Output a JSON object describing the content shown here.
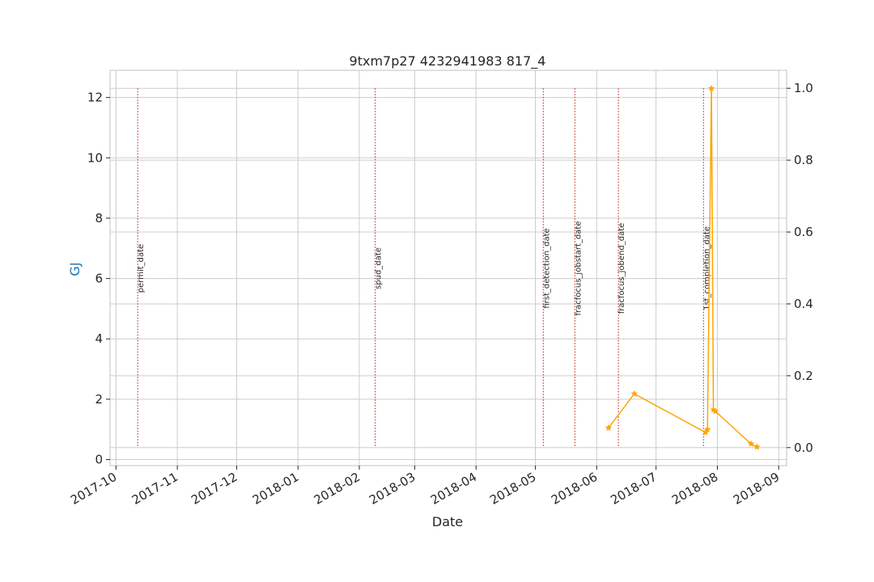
{
  "chart_data": {
    "type": "line",
    "title": "9txm7p27 4232941983 817_4",
    "xlabel": "Date",
    "ylabel": "GJ",
    "ylabel_color": "#1f77b4",
    "xlim": [
      "2017-09-28",
      "2018-09-05"
    ],
    "ylim": [
      -0.2,
      12.9
    ],
    "y2lim": [
      -0.05,
      1.05
    ],
    "grid": true,
    "x_ticks": [
      "2017-10",
      "2017-11",
      "2017-12",
      "2018-01",
      "2018-02",
      "2018-03",
      "2018-04",
      "2018-05",
      "2018-06",
      "2018-07",
      "2018-08",
      "2018-09"
    ],
    "x_tick_dates": [
      "2017-10-01",
      "2017-11-01",
      "2017-12-01",
      "2018-01-01",
      "2018-02-01",
      "2018-03-01",
      "2018-04-01",
      "2018-05-01",
      "2018-06-01",
      "2018-07-01",
      "2018-08-01",
      "2018-09-01"
    ],
    "y_ticks": [
      0,
      2,
      4,
      6,
      8,
      10,
      12
    ],
    "y2_ticks": [
      0.0,
      0.2,
      0.4,
      0.6,
      0.8,
      1.0
    ],
    "y_tick_labels": [
      "0",
      "2",
      "4",
      "6",
      "8",
      "10",
      "12"
    ],
    "y2_tick_labels": [
      "0.0",
      "0.2",
      "0.4",
      "0.6",
      "0.8",
      "1.0"
    ],
    "series": [
      {
        "color": "#ffa500",
        "marker": "star",
        "x": [
          "2018-06-07",
          "2018-06-20",
          "2018-07-26",
          "2018-07-27",
          "2018-07-29",
          "2018-07-30",
          "2018-07-31",
          "2018-08-18",
          "2018-08-21"
        ],
        "y": [
          1.05,
          2.18,
          0.9,
          1.0,
          12.3,
          1.65,
          1.6,
          0.52,
          0.42
        ]
      }
    ],
    "events": [
      {
        "label": "permit_date",
        "date": "2017-10-12",
        "color": "#c0392b"
      },
      {
        "label": "spud_date",
        "date": "2018-02-09",
        "color": "#c0392b"
      },
      {
        "label": "first_detection_date",
        "date": "2018-05-05",
        "color": "#c0392b"
      },
      {
        "label": "fracfocus_jobstart_date",
        "date": "2018-05-21",
        "color": "#c0392b"
      },
      {
        "label": "fracfocus_jobend_date",
        "date": "2018-06-12",
        "color": "#c0392b"
      },
      {
        "label": "1st_completion_date",
        "date": "2018-07-25",
        "color": "#7b4ba0"
      }
    ]
  }
}
